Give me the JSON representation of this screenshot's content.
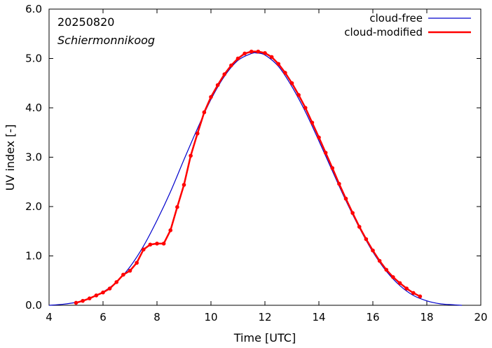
{
  "chart_data": {
    "type": "line",
    "xlabel": "Time  [UTC]",
    "ylabel": "UV index  [-]",
    "xlim": [
      4,
      20
    ],
    "ylim": [
      0,
      6
    ],
    "xticks": [
      4,
      6,
      8,
      10,
      12,
      14,
      16,
      18,
      20
    ],
    "yticks": [
      0.0,
      1.0,
      2.0,
      3.0,
      4.0,
      5.0,
      6.0
    ],
    "xtick_labels": [
      "4",
      "6",
      "8",
      "10",
      "12",
      "14",
      "16",
      "18",
      "20"
    ],
    "ytick_labels": [
      "0.0",
      "1.0",
      "2.0",
      "3.0",
      "4.0",
      "5.0",
      "6.0"
    ],
    "grid": false,
    "legend_position": "top-right",
    "annotations": {
      "date": "20250820",
      "location": "Schiermonnikoog"
    },
    "series": [
      {
        "name": "cloud-free",
        "color": "#0000cc",
        "marker": "none",
        "x": [
          4.0,
          4.5,
          5.0,
          5.5,
          6.0,
          6.5,
          7.0,
          7.5,
          8.0,
          8.5,
          9.0,
          9.5,
          10.0,
          10.5,
          11.0,
          11.5,
          11.7,
          12.0,
          12.5,
          13.0,
          13.5,
          14.0,
          14.5,
          15.0,
          15.5,
          16.0,
          16.5,
          17.0,
          17.5,
          18.0,
          18.5,
          19.0,
          19.3
        ],
        "y": [
          0.0,
          0.02,
          0.06,
          0.14,
          0.27,
          0.47,
          0.78,
          1.2,
          1.72,
          2.3,
          2.95,
          3.58,
          4.17,
          4.64,
          4.96,
          5.1,
          5.11,
          5.07,
          4.84,
          4.43,
          3.92,
          3.33,
          2.72,
          2.12,
          1.57,
          1.08,
          0.69,
          0.4,
          0.2,
          0.09,
          0.03,
          0.01,
          0.0
        ]
      },
      {
        "name": "cloud-modified",
        "color": "#ff0000",
        "marker": "circle",
        "x": [
          5.0,
          5.25,
          5.5,
          5.75,
          6.0,
          6.25,
          6.5,
          6.75,
          7.0,
          7.25,
          7.5,
          7.75,
          8.0,
          8.25,
          8.5,
          8.75,
          9.0,
          9.25,
          9.5,
          9.75,
          10.0,
          10.25,
          10.5,
          10.75,
          11.0,
          11.25,
          11.5,
          11.75,
          12.0,
          12.25,
          12.5,
          12.75,
          13.0,
          13.25,
          13.5,
          13.75,
          14.0,
          14.25,
          14.5,
          14.75,
          15.0,
          15.25,
          15.5,
          15.75,
          16.0,
          16.25,
          16.5,
          16.75,
          17.0,
          17.25,
          17.5,
          17.75
        ],
        "y": [
          0.05,
          0.09,
          0.14,
          0.2,
          0.26,
          0.34,
          0.47,
          0.62,
          0.7,
          0.86,
          1.13,
          1.23,
          1.25,
          1.25,
          1.52,
          1.99,
          2.44,
          3.03,
          3.48,
          3.91,
          4.22,
          4.46,
          4.68,
          4.86,
          5.0,
          5.1,
          5.14,
          5.14,
          5.11,
          5.03,
          4.89,
          4.71,
          4.5,
          4.26,
          4.0,
          3.7,
          3.4,
          3.09,
          2.78,
          2.46,
          2.16,
          1.87,
          1.59,
          1.34,
          1.11,
          0.9,
          0.72,
          0.57,
          0.45,
          0.34,
          0.25,
          0.18
        ]
      }
    ]
  }
}
